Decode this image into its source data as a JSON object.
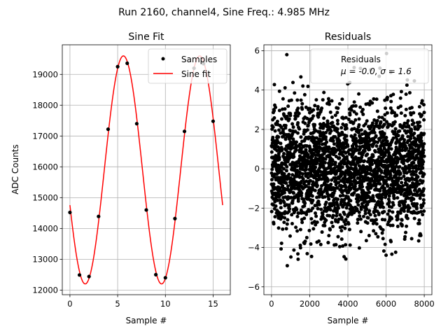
{
  "figure": {
    "suptitle": "Run 2160, channel4, Sine Freq.: 4.985 MHz"
  },
  "colors": {
    "fit_line": "#ff0000",
    "points": "#000000",
    "grid": "#b0b0b0",
    "legend_border": "#cccccc"
  },
  "chart_data": [
    {
      "type": "line",
      "title": "Sine Fit",
      "xlabel": "Sample #",
      "ylabel": "ADC Counts",
      "xlim": [
        -0.8,
        16.8
      ],
      "ylim": [
        11850,
        19960
      ],
      "xticks": [
        0,
        5,
        10,
        15
      ],
      "xtick_labels": [
        "0",
        "5",
        "10",
        "15"
      ],
      "yticks": [
        12000,
        13000,
        14000,
        15000,
        16000,
        17000,
        18000,
        19000
      ],
      "ytick_labels": [
        "12000",
        "13000",
        "14000",
        "15000",
        "16000",
        "17000",
        "18000",
        "19000"
      ],
      "grid": true,
      "legend_position": "top-right",
      "legend_items": [
        {
          "label": "Samples",
          "marker": "dot"
        },
        {
          "label": "Sine fit",
          "marker": "line"
        }
      ],
      "samples": {
        "name": "Samples",
        "x": [
          0,
          1,
          2,
          3,
          4,
          5,
          6,
          7,
          8,
          9,
          10,
          11,
          12,
          13,
          14,
          15
        ],
        "y": [
          14520,
          12490,
          12440,
          14390,
          17220,
          19250,
          19360,
          17400,
          14600,
          12500,
          12400,
          14320,
          17150,
          19200,
          19350,
          17480
        ]
      },
      "fit": {
        "name": "Sine fit",
        "amplitude": 3700,
        "offset": 15900,
        "period_samples": 8.0,
        "phase_zero_crossing_x": 3.6,
        "x_range": [
          0,
          16
        ]
      }
    },
    {
      "type": "scatter",
      "title": "Residuals",
      "xlabel": "Sample #",
      "ylabel": "",
      "xlim": [
        -400,
        8400
      ],
      "ylim": [
        -6.4,
        6.3
      ],
      "xticks": [
        0,
        2000,
        4000,
        6000,
        8000
      ],
      "xtick_labels": [
        "0",
        "2000",
        "4000",
        "6000",
        "8000"
      ],
      "yticks": [
        -6,
        -4,
        -2,
        0,
        2,
        4,
        6
      ],
      "ytick_labels": [
        "−6",
        "−4",
        "−2",
        "0",
        "2",
        "4",
        "6"
      ],
      "grid": true,
      "legend_position": "top-right",
      "legend_title": "Residuals",
      "legend_stats": "μ = -0.0, σ = 1.6",
      "series": {
        "name": "Residuals",
        "n_points": 8000,
        "mean": 0.0,
        "std": 1.6,
        "x_range": [
          0,
          8000
        ]
      }
    }
  ]
}
